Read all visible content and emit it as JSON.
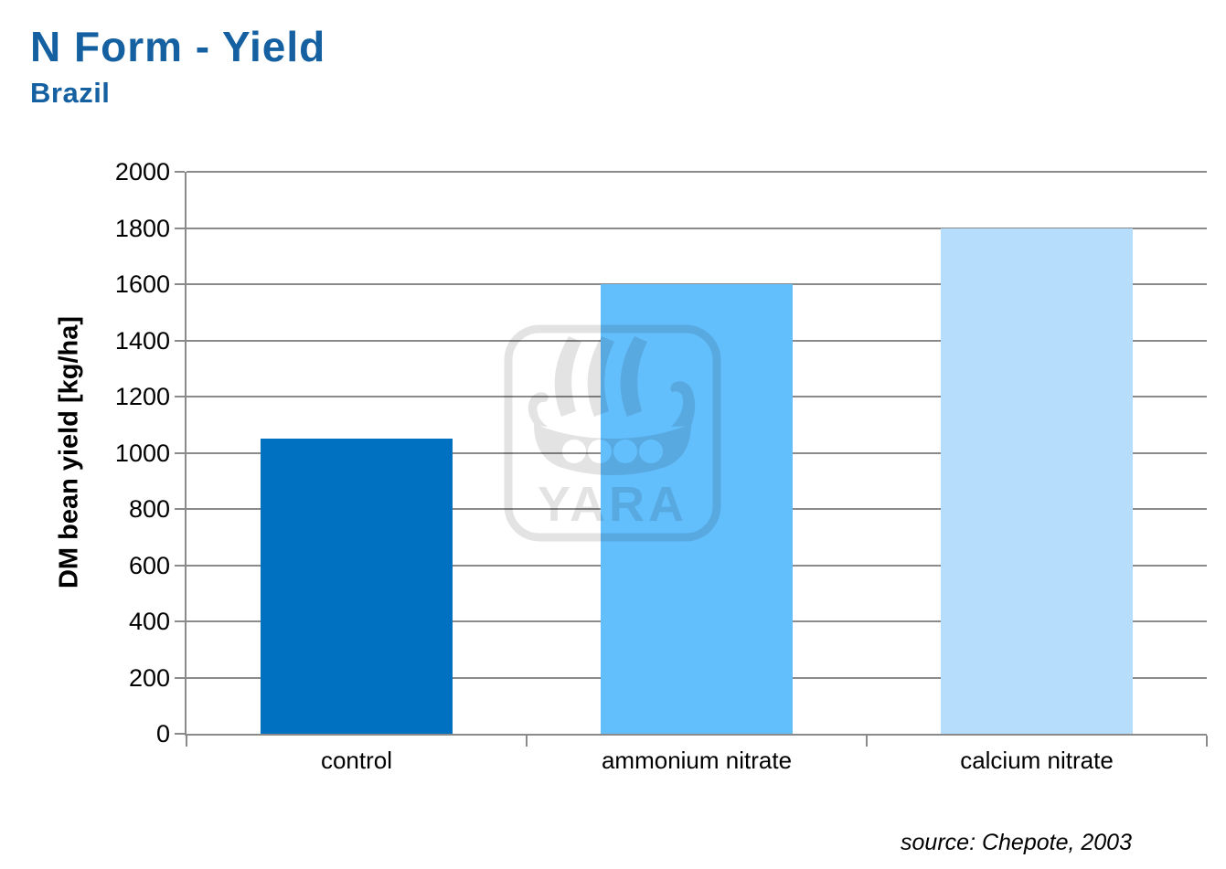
{
  "header": {
    "title": "N Form - Yield",
    "subtitle": "Brazil",
    "title_color": "#1460A0"
  },
  "source_note": "source: Chepote, 2003",
  "watermark": {
    "name": "yara-logo",
    "wordmark": "YARA"
  },
  "colors": {
    "gridline": "#8A8A8A",
    "axis": "#8A8A8A",
    "text": "#000000",
    "background": "#FFFFFF"
  },
  "chart_data": {
    "type": "bar",
    "categories": [
      "control",
      "ammonium nitrate",
      "calcium nitrate"
    ],
    "values": [
      1050,
      1600,
      1800
    ],
    "bar_colors": [
      "#0071C1",
      "#63BEFC",
      "#B6DEFC"
    ],
    "title": "",
    "xlabel": "",
    "ylabel": "DM bean yield [kg/ha]",
    "ylim": [
      0,
      2000
    ],
    "ytick_step": 200,
    "yticks": [
      0,
      200,
      400,
      600,
      800,
      1000,
      1200,
      1400,
      1600,
      1800,
      2000
    ],
    "grid": true,
    "legend": false,
    "bar_width_fraction": 0.565
  }
}
